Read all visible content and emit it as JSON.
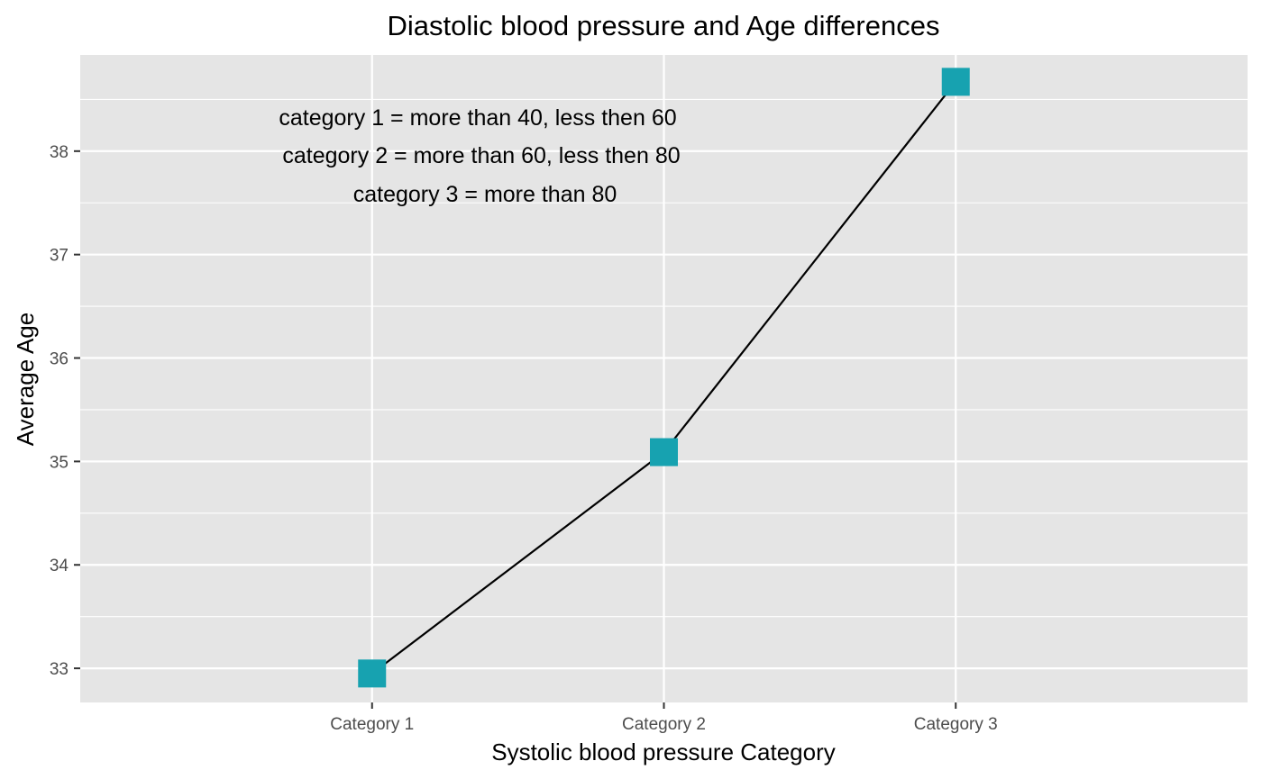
{
  "chart_data": {
    "type": "line",
    "title": "Diastolic blood pressure and Age differences",
    "xlabel": "Systolic blood pressure Category",
    "ylabel": "Average Age",
    "categories": [
      "Category 1",
      "Category 2",
      "Category 3"
    ],
    "values": [
      32.95,
      35.09,
      38.67
    ],
    "ylim": [
      32.67,
      38.93
    ],
    "yticks": [
      33,
      34,
      35,
      36,
      37,
      38
    ],
    "ytick_labels": [
      "33",
      "34",
      "35",
      "36",
      "37",
      "38"
    ],
    "grid": true,
    "colors": {
      "panel": "#e5e5e5",
      "grid": "#ffffff",
      "line": "#000000",
      "marker": "#17a2b0"
    },
    "marker": "square",
    "annotations": [
      "category 1 = more than 40, less then 60",
      "category 2 = more than 60, less then 80",
      "category 3 = more than 80"
    ]
  }
}
